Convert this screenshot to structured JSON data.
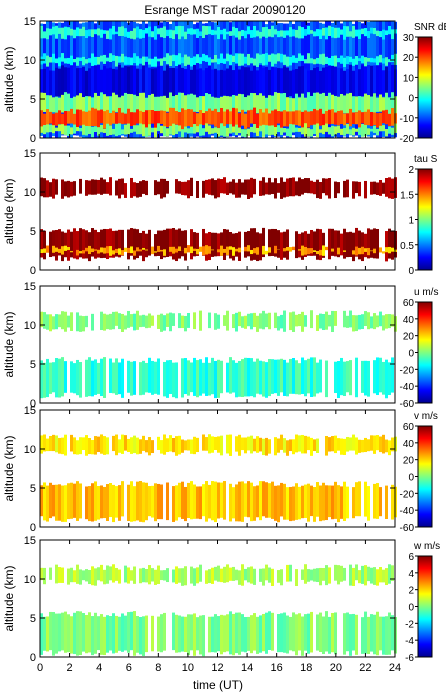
{
  "title": "Esrange MST radar 20090120",
  "shared_xlabel": "time (UT)",
  "shared_ylabel": "altitude (km)",
  "x_ticks": [
    "0",
    "2",
    "4",
    "6",
    "8",
    "10",
    "12",
    "14",
    "16",
    "18",
    "20",
    "22",
    "24"
  ],
  "y_ticks": [
    "0",
    "5",
    "10",
    "15"
  ],
  "colors": {
    "jet": [
      "#00008f",
      "#0000ff",
      "#0080ff",
      "#00ffff",
      "#80ff80",
      "#ffff00",
      "#ff8000",
      "#ff0000",
      "#800000"
    ],
    "background": "#ffffff",
    "axes": "#000000"
  },
  "chart_data": [
    {
      "type": "heatmap",
      "panel": "snr",
      "title": "Esrange MST radar 20090120",
      "xlabel": "",
      "ylabel": "altitude (km)",
      "xlim": [
        0,
        24
      ],
      "ylim": [
        0,
        15
      ],
      "colorbar": {
        "label": "SNR dB",
        "range": [
          -20,
          30
        ],
        "ticks": [
          "30",
          "20",
          "10",
          "0",
          "-10",
          "-20"
        ]
      },
      "layers": [
        {
          "y_low": 0,
          "y_high": 15,
          "value": -10
        },
        {
          "y_low": 9.5,
          "y_high": 10.5,
          "value": 0
        },
        {
          "y_low": 5,
          "y_high": 9,
          "value": -15
        },
        {
          "y_low": 3,
          "y_high": 5.5,
          "value": 5
        },
        {
          "y_low": 1.5,
          "y_high": 3.5,
          "value": 20
        },
        {
          "y_low": 0.5,
          "y_high": 1.5,
          "value": 5
        },
        {
          "y_low": 13,
          "y_high": 14,
          "value": 0
        }
      ]
    },
    {
      "type": "heatmap",
      "panel": "tau",
      "xlabel": "",
      "ylabel": "altitude (km)",
      "xlim": [
        0,
        24
      ],
      "ylim": [
        0,
        15
      ],
      "colorbar": {
        "label": "tau S",
        "range": [
          0,
          2
        ],
        "ticks": [
          "2",
          "1.5",
          "1",
          "0.5",
          "0"
        ]
      },
      "layers": [
        {
          "y_low": 9.5,
          "y_high": 11.5,
          "value": 2
        },
        {
          "y_low": 1.5,
          "y_high": 5,
          "value": 2
        },
        {
          "y_low": 2.2,
          "y_high": 2.8,
          "value": 1.4
        }
      ]
    },
    {
      "type": "heatmap",
      "panel": "u",
      "xlabel": "",
      "ylabel": "altitude (km)",
      "xlim": [
        0,
        24
      ],
      "ylim": [
        0,
        15
      ],
      "colorbar": {
        "label": "u m/s",
        "range": [
          -60,
          60
        ],
        "ticks": [
          "60",
          "40",
          "20",
          "0",
          "-20",
          "-40",
          "-60"
        ]
      },
      "layers": [
        {
          "y_low": 9.5,
          "y_high": 11.5,
          "value": 0
        },
        {
          "y_low": 1,
          "y_high": 5.5,
          "value": -10
        }
      ]
    },
    {
      "type": "heatmap",
      "panel": "v",
      "xlabel": "",
      "ylabel": "altitude (km)",
      "xlim": [
        0,
        24
      ],
      "ylim": [
        0,
        15
      ],
      "colorbar": {
        "label": "v m/s",
        "range": [
          -60,
          60
        ],
        "ticks": [
          "60",
          "40",
          "20",
          "0",
          "-20",
          "-40",
          "-60"
        ]
      },
      "layers": [
        {
          "y_low": 9.5,
          "y_high": 11.5,
          "value": 18
        },
        {
          "y_low": 1,
          "y_high": 5.5,
          "value": 22
        }
      ]
    },
    {
      "type": "heatmap",
      "panel": "w",
      "xlabel": "time (UT)",
      "ylabel": "altitude (km)",
      "xlim": [
        0,
        24
      ],
      "ylim": [
        0,
        15
      ],
      "colorbar": {
        "label": "w m/s",
        "range": [
          -6,
          6
        ],
        "ticks": [
          "6",
          "4",
          "2",
          "0",
          "-2",
          "-4",
          "-6"
        ]
      },
      "layers": [
        {
          "y_low": 9.5,
          "y_high": 11.5,
          "value": 0.5
        },
        {
          "y_low": 0.5,
          "y_high": 5.5,
          "value": 0
        }
      ]
    }
  ]
}
